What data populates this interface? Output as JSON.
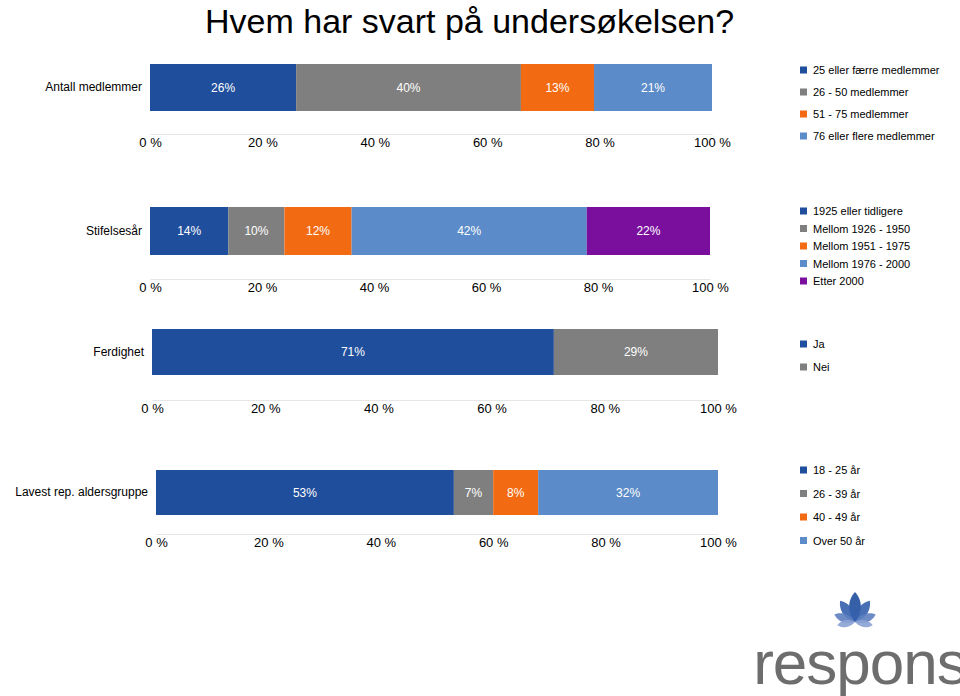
{
  "title": "Hvem har svart på undersøkelsen?",
  "logo": "respons",
  "chart_data": [
    {
      "type": "bar",
      "orientation": "horizontal",
      "stacked": true,
      "data_labels": true,
      "legend": "right",
      "categories": [
        "Antall medlemmer"
      ],
      "xlim": [
        0,
        100
      ],
      "xticks": [
        {
          "value": 0,
          "label": "0 %"
        },
        {
          "value": 20,
          "label": "20 %"
        },
        {
          "value": 40,
          "label": "40 %"
        },
        {
          "value": 60,
          "label": "60 %"
        },
        {
          "value": 80,
          "label": "80 %"
        },
        {
          "value": 100,
          "label": "100 %"
        }
      ],
      "series": [
        {
          "name": "25 eller færre medlemmer",
          "color": "#1f4e9c",
          "values": [
            26
          ],
          "value_labels": [
            "26%"
          ]
        },
        {
          "name": "26 - 50 medlemmer",
          "color": "#7f7f7f",
          "values": [
            40
          ],
          "value_labels": [
            "40%"
          ]
        },
        {
          "name": "51 - 75 medlemmer",
          "color": "#f26b13",
          "values": [
            13
          ],
          "value_labels": [
            "13%"
          ]
        },
        {
          "name": "76 eller flere medlemmer",
          "color": "#5b8bc8",
          "values": [
            21
          ],
          "value_labels": [
            "21%"
          ]
        }
      ]
    },
    {
      "type": "bar",
      "orientation": "horizontal",
      "stacked": true,
      "data_labels": true,
      "legend": "right",
      "categories": [
        "Stifelsesår"
      ],
      "xlim": [
        0,
        100
      ],
      "xticks": [
        {
          "value": 0,
          "label": "0 %"
        },
        {
          "value": 20,
          "label": "20 %"
        },
        {
          "value": 40,
          "label": "40 %"
        },
        {
          "value": 60,
          "label": "60 %"
        },
        {
          "value": 80,
          "label": "80 %"
        },
        {
          "value": 100,
          "label": "100 %"
        }
      ],
      "series": [
        {
          "name": "1925 eller tidligere",
          "color": "#1f4e9c",
          "values": [
            14
          ],
          "value_labels": [
            "14%"
          ]
        },
        {
          "name": "Mellom 1926 - 1950",
          "color": "#7f7f7f",
          "values": [
            10
          ],
          "value_labels": [
            "10%"
          ]
        },
        {
          "name": "Mellom 1951 - 1975",
          "color": "#f26b13",
          "values": [
            12
          ],
          "value_labels": [
            "12%"
          ]
        },
        {
          "name": "Mellom 1976 - 2000",
          "color": "#5b8bc8",
          "values": [
            42
          ],
          "value_labels": [
            "42%"
          ]
        },
        {
          "name": "Etter 2000",
          "color": "#7a0f9e",
          "values": [
            22
          ],
          "value_labels": [
            "22%"
          ]
        }
      ]
    },
    {
      "type": "bar",
      "orientation": "horizontal",
      "stacked": true,
      "data_labels": true,
      "legend": "right",
      "categories": [
        "Ferdighet"
      ],
      "xlim": [
        0,
        100
      ],
      "xticks": [
        {
          "value": 0,
          "label": "0 %"
        },
        {
          "value": 20,
          "label": "20 %"
        },
        {
          "value": 40,
          "label": "40 %"
        },
        {
          "value": 60,
          "label": "60 %"
        },
        {
          "value": 80,
          "label": "80 %"
        },
        {
          "value": 100,
          "label": "100 %"
        }
      ],
      "series": [
        {
          "name": "Ja",
          "color": "#1f4e9c",
          "values": [
            71
          ],
          "value_labels": [
            "71%"
          ]
        },
        {
          "name": "Nei",
          "color": "#7f7f7f",
          "values": [
            29
          ],
          "value_labels": [
            "29%"
          ]
        }
      ]
    },
    {
      "type": "bar",
      "orientation": "horizontal",
      "stacked": true,
      "data_labels": true,
      "legend": "right",
      "categories": [
        "Lavest rep. aldersgruppe"
      ],
      "xlim": [
        0,
        100
      ],
      "xticks": [
        {
          "value": 0,
          "label": "0 %"
        },
        {
          "value": 20,
          "label": "20 %"
        },
        {
          "value": 40,
          "label": "40 %"
        },
        {
          "value": 60,
          "label": "60 %"
        },
        {
          "value": 80,
          "label": "80 %"
        },
        {
          "value": 100,
          "label": "100 %"
        }
      ],
      "series": [
        {
          "name": "18 - 25 år",
          "color": "#1f4e9c",
          "values": [
            53
          ],
          "value_labels": [
            "53%"
          ]
        },
        {
          "name": "26 - 39 år",
          "color": "#7f7f7f",
          "values": [
            7
          ],
          "value_labels": [
            "7%"
          ]
        },
        {
          "name": "40 - 49 år",
          "color": "#f26b13",
          "values": [
            8
          ],
          "value_labels": [
            "8%"
          ]
        },
        {
          "name": "Over 50 år",
          "color": "#5b8bc8",
          "values": [
            32
          ],
          "value_labels": [
            "32%"
          ]
        }
      ]
    }
  ]
}
